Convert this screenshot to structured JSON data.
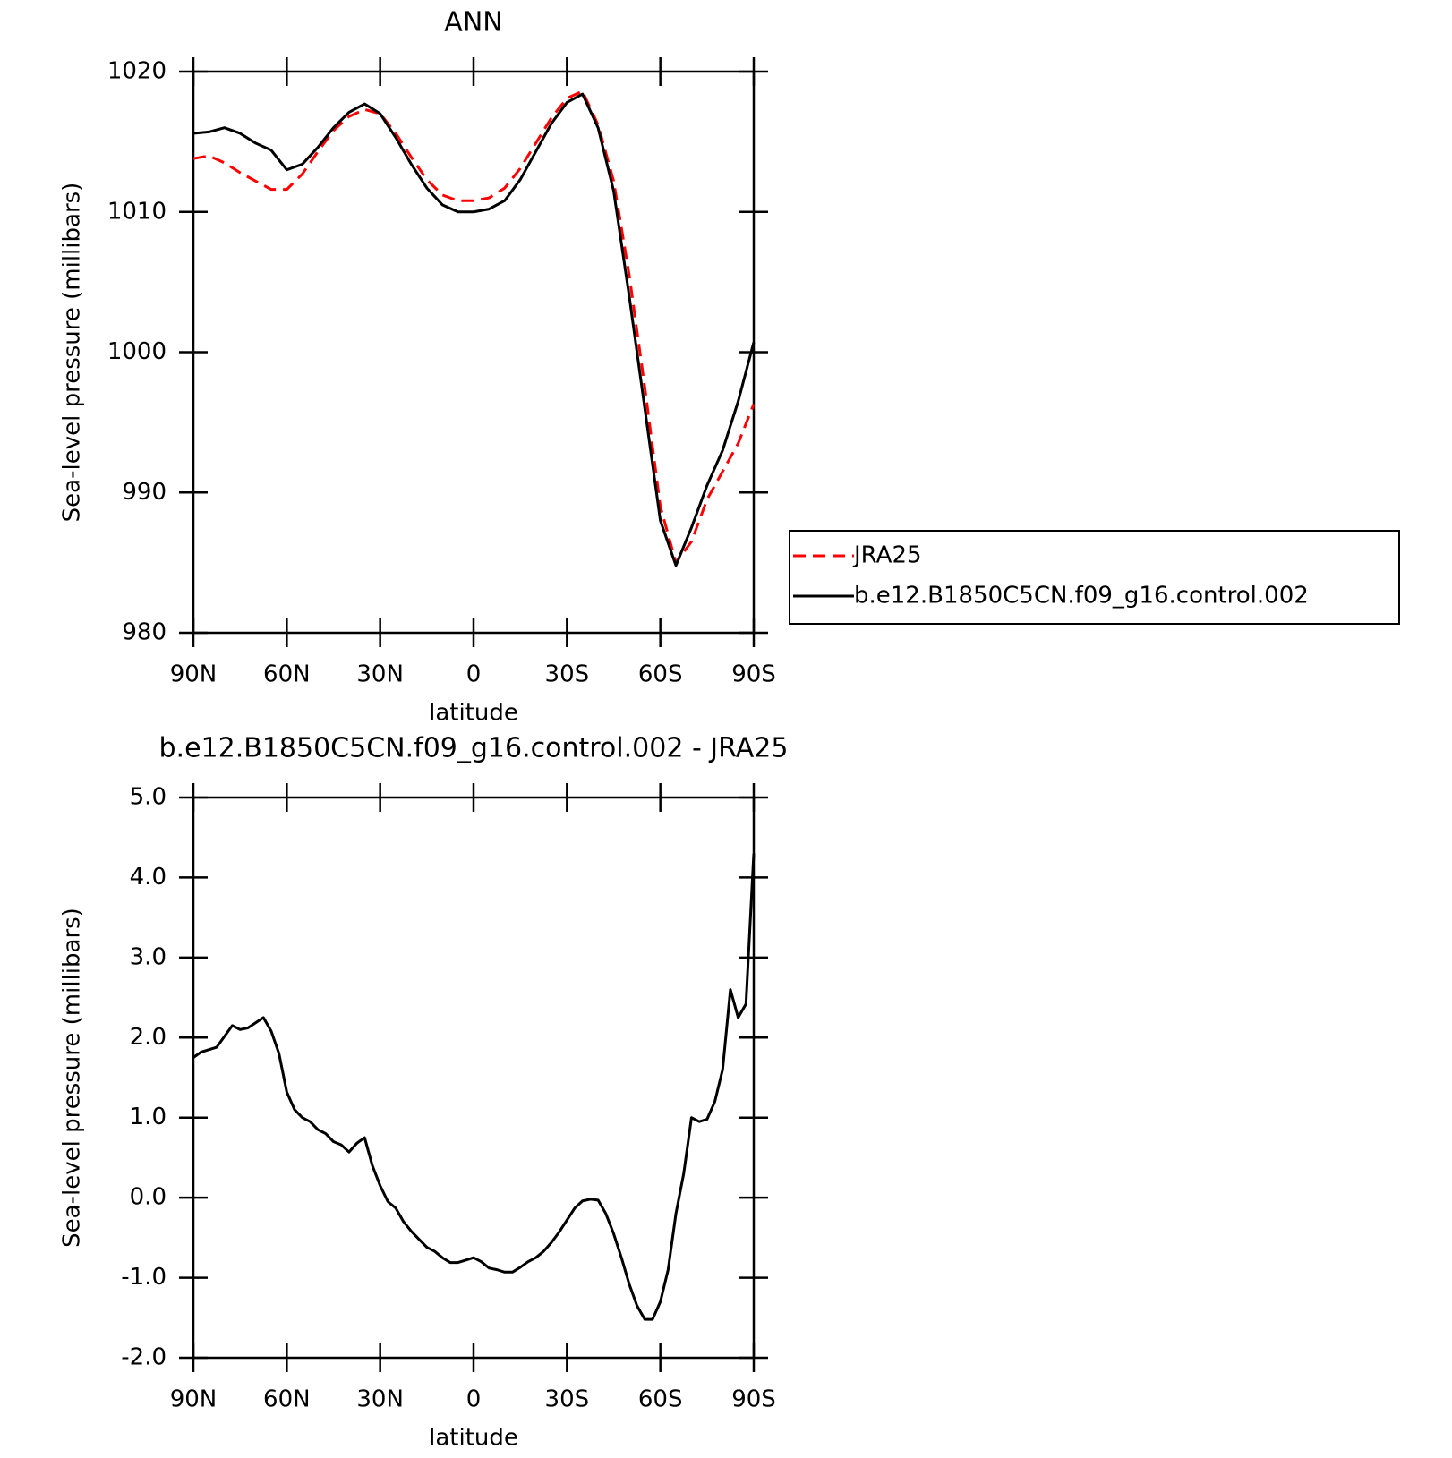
{
  "chart_data": [
    {
      "type": "line",
      "title": "ANN",
      "xlabel": "latitude",
      "ylabel": "Sea-level pressure (millibars)",
      "x": [
        90,
        85,
        80,
        75,
        70,
        65,
        60,
        55,
        50,
        45,
        40,
        35,
        30,
        25,
        20,
        15,
        10,
        5,
        0,
        -5,
        -10,
        -15,
        -20,
        -25,
        -30,
        -35,
        -40,
        -45,
        -50,
        -55,
        -60,
        -65,
        -70,
        -75,
        -80,
        -85,
        -90
      ],
      "series": [
        {
          "name": "JRA25",
          "color": "#ff0000",
          "dashed": true,
          "values": [
            1013.8,
            1014.0,
            1013.5,
            1012.8,
            1012.2,
            1011.6,
            1011.6,
            1012.7,
            1014.3,
            1015.8,
            1016.8,
            1017.3,
            1017.0,
            1015.6,
            1013.9,
            1012.3,
            1011.2,
            1010.8,
            1010.8,
            1011.0,
            1011.7,
            1013.1,
            1014.9,
            1016.7,
            1018.1,
            1018.6,
            1016.2,
            1012.2,
            1005.5,
            997.5,
            989.0,
            985.0,
            986.5,
            989.5,
            991.5,
            993.5,
            996.3
          ]
        },
        {
          "name": "b.e12.B1850C5CN.f09_g16.control.002",
          "color": "#000000",
          "dashed": false,
          "values": [
            1015.6,
            1015.7,
            1016.0,
            1015.6,
            1014.9,
            1014.4,
            1013.0,
            1013.4,
            1014.6,
            1016.0,
            1017.1,
            1017.7,
            1017.0,
            1015.3,
            1013.4,
            1011.7,
            1010.5,
            1010.0,
            1010.0,
            1010.2,
            1010.8,
            1012.3,
            1014.3,
            1016.3,
            1017.8,
            1018.4,
            1016.0,
            1011.5,
            1004.0,
            996.0,
            988.0,
            984.8,
            987.5,
            990.5,
            993.0,
            996.5,
            1000.7
          ]
        }
      ],
      "xlim": [
        90,
        -90
      ],
      "xticks": [
        {
          "value": 90,
          "label": "90N"
        },
        {
          "value": 60,
          "label": "60N"
        },
        {
          "value": 30,
          "label": "30N"
        },
        0,
        {
          "value": -30,
          "label": "30S"
        },
        {
          "value": -60,
          "label": "60S"
        },
        {
          "value": -90,
          "label": "90S"
        }
      ],
      "ylim": [
        980,
        1020
      ],
      "yticks": [
        980,
        990,
        1000,
        1010,
        1020
      ],
      "legend": "right"
    },
    {
      "type": "line",
      "title": "b.e12.B1850C5CN.f09_g16.control.002 - JRA25",
      "xlabel": "latitude",
      "ylabel": "Sea-level pressure (millibars)",
      "x": [
        90,
        87.5,
        82.5,
        77.5,
        75,
        72.5,
        67.5,
        65,
        62.5,
        60,
        57.5,
        55,
        52.5,
        50,
        47.5,
        45,
        42.5,
        40,
        37.5,
        35,
        32.5,
        30,
        27.5,
        25,
        22.5,
        20,
        17.5,
        15,
        12.5,
        10,
        7.5,
        5,
        2.5,
        0,
        -2.5,
        -5,
        -7.5,
        -10,
        -12.5,
        -15,
        -17.5,
        -20,
        -22.5,
        -25,
        -27.5,
        -30,
        -32.5,
        -35,
        -37.5,
        -40,
        -42.5,
        -45,
        -47.5,
        -50,
        -52.5,
        -55,
        -57.5,
        -60,
        -62.5,
        -65,
        -67.5,
        -70,
        -72.5,
        -75,
        -77.5,
        -80,
        -82.5,
        -85,
        -87.5,
        -90
      ],
      "values": [
        1.75,
        1.82,
        1.88,
        2.15,
        2.1,
        2.12,
        2.25,
        2.08,
        1.8,
        1.32,
        1.1,
        1.0,
        0.95,
        0.85,
        0.8,
        0.7,
        0.66,
        0.57,
        0.68,
        0.75,
        0.4,
        0.15,
        -0.05,
        -0.13,
        -0.3,
        -0.42,
        -0.52,
        -0.62,
        -0.67,
        -0.75,
        -0.81,
        -0.81,
        -0.78,
        -0.75,
        -0.8,
        -0.88,
        -0.9,
        -0.93,
        -0.93,
        -0.87,
        -0.8,
        -0.75,
        -0.67,
        -0.56,
        -0.43,
        -0.28,
        -0.13,
        -0.04,
        -0.02,
        -0.03,
        -0.2,
        -0.45,
        -0.75,
        -1.08,
        -1.35,
        -1.52,
        -1.52,
        -1.3,
        -0.9,
        -0.2,
        0.3,
        1.0,
        0.95,
        0.98,
        1.2,
        1.6,
        2.6,
        2.25,
        2.42,
        4.3
      ],
      "color": "#000000",
      "xlim": [
        90,
        -90
      ],
      "xticks": [
        {
          "value": 90,
          "label": "90N"
        },
        {
          "value": 60,
          "label": "60N"
        },
        {
          "value": 30,
          "label": "30N"
        },
        0,
        {
          "value": -30,
          "label": "30S"
        },
        {
          "value": -60,
          "label": "60S"
        },
        {
          "value": -90,
          "label": "90S"
        }
      ],
      "ylim": [
        -2,
        5
      ],
      "yticks": [
        {
          "value": -2,
          "label": "-2.0"
        },
        {
          "value": -1,
          "label": "-1.0"
        },
        {
          "value": 0,
          "label": "0.0"
        },
        {
          "value": 1,
          "label": "1.0"
        },
        {
          "value": 2,
          "label": "2.0"
        },
        {
          "value": 3,
          "label": "3.0"
        },
        {
          "value": 4,
          "label": "4.0"
        },
        {
          "value": 5,
          "label": "5.0"
        }
      ]
    }
  ]
}
